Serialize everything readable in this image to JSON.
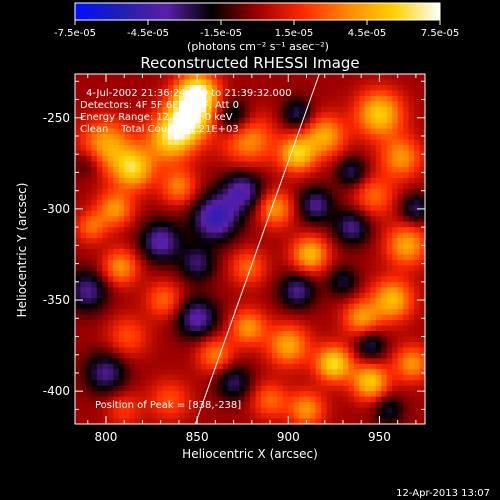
{
  "chart_data": {
    "type": "heatmap",
    "title": "Reconstructed RHESSI Image",
    "xlabel": "Heliocentric X (arcsec)",
    "ylabel": "Heliocentric Y (arcsec)",
    "xlim": [
      783,
      975
    ],
    "ylim": [
      -418,
      -226
    ],
    "x_ticks": [
      800,
      850,
      900,
      950
    ],
    "y_ticks": [
      -250,
      -300,
      -350,
      -400
    ],
    "colorbar": {
      "range": [
        -7.5e-05,
        7.5e-05
      ],
      "tick_labels": [
        "-7.5e-05",
        "-4.5e-05",
        "-1.5e-05",
        "1.5e-05",
        "4.5e-05",
        "7.5e-05"
      ],
      "tick_values": [
        -7.5e-05,
        -4.5e-05,
        -1.5e-05,
        1.5e-05,
        4.5e-05,
        7.5e-05
      ],
      "units_label": "(photons cm⁻² s⁻¹ asec⁻²)",
      "colormap": [
        "#0010ff",
        "#1f1fb0",
        "#5b1fa8",
        "#000000",
        "#9c0000",
        "#ff2a00",
        "#ff8a00",
        "#ffd200",
        "#ffffff"
      ]
    },
    "annotations": {
      "time": "4-Jul-2002 21:36:24.000 to 21:39:32.000",
      "detectors": "Detectors: 4F 5F 6F 7F 8F, Att 0",
      "energy": "Energy Range: 12.0 - 25.0 keV",
      "clean": "Clean    Total Counts: 1.21E+03",
      "peak": "Position of Peak = [838,-238]"
    },
    "limb_line": [
      [
        849,
        -418
      ],
      [
        917,
        -226
      ]
    ],
    "sources": [
      {
        "x": 850,
        "y": -237,
        "v": 7.3e-05,
        "s": 8
      },
      {
        "x": 845,
        "y": -251,
        "v": 6.5e-05,
        "s": 9
      },
      {
        "x": 835,
        "y": -262,
        "v": 5e-05,
        "s": 9
      },
      {
        "x": 815,
        "y": -278,
        "v": 5.5e-05,
        "s": 8
      },
      {
        "x": 800,
        "y": -265,
        "v": 4.5e-05,
        "s": 10
      },
      {
        "x": 840,
        "y": -288,
        "v": 3.5e-05,
        "s": 7
      },
      {
        "x": 805,
        "y": -300,
        "v": 4e-05,
        "s": 7
      },
      {
        "x": 878,
        "y": -262,
        "v": 4e-05,
        "s": 10
      },
      {
        "x": 905,
        "y": -270,
        "v": 5.5e-05,
        "s": 7
      },
      {
        "x": 920,
        "y": -260,
        "v": 4.5e-05,
        "s": 8
      },
      {
        "x": 950,
        "y": -248,
        "v": 5.5e-05,
        "s": 9
      },
      {
        "x": 962,
        "y": -272,
        "v": 4e-05,
        "s": 8
      },
      {
        "x": 947,
        "y": -293,
        "v": 3e-05,
        "s": 8
      },
      {
        "x": 893,
        "y": -300,
        "v": 4e-05,
        "s": 7
      },
      {
        "x": 912,
        "y": -325,
        "v": 5e-05,
        "s": 7
      },
      {
        "x": 878,
        "y": -332,
        "v": 3e-05,
        "s": 7
      },
      {
        "x": 965,
        "y": -320,
        "v": 4.5e-05,
        "s": 8
      },
      {
        "x": 957,
        "y": -350,
        "v": 5e-05,
        "s": 8
      },
      {
        "x": 940,
        "y": -360,
        "v": 4e-05,
        "s": 7
      },
      {
        "x": 925,
        "y": -385,
        "v": 6e-05,
        "s": 7
      },
      {
        "x": 945,
        "y": -395,
        "v": 5.5e-05,
        "s": 7
      },
      {
        "x": 968,
        "y": -385,
        "v": 4e-05,
        "s": 7
      },
      {
        "x": 900,
        "y": -375,
        "v": 4.5e-05,
        "s": 8
      },
      {
        "x": 878,
        "y": -365,
        "v": 4e-05,
        "s": 7
      },
      {
        "x": 860,
        "y": -380,
        "v": 3.5e-05,
        "s": 7
      },
      {
        "x": 812,
        "y": -370,
        "v": 2.5e-05,
        "s": 8
      },
      {
        "x": 832,
        "y": -350,
        "v": 3e-05,
        "s": 7
      },
      {
        "x": 808,
        "y": -332,
        "v": 4e-05,
        "s": 7
      },
      {
        "x": 792,
        "y": -310,
        "v": 3e-05,
        "s": 6
      },
      {
        "x": 835,
        "y": -405,
        "v": 2.5e-05,
        "s": 8
      },
      {
        "x": 810,
        "y": -410,
        "v": 2e-05,
        "s": 7
      },
      {
        "x": 910,
        "y": -410,
        "v": 4e-05,
        "s": 7
      },
      {
        "x": 890,
        "y": -405,
        "v": 3e-05,
        "s": 7
      },
      {
        "x": 870,
        "y": -250,
        "v": -3.5e-05,
        "s": 7
      },
      {
        "x": 905,
        "y": -248,
        "v": -3e-05,
        "s": 6
      },
      {
        "x": 860,
        "y": -305,
        "v": -5e-05,
        "s": 9
      },
      {
        "x": 875,
        "y": -290,
        "v": -4e-05,
        "s": 8
      },
      {
        "x": 830,
        "y": -318,
        "v": -4e-05,
        "s": 8
      },
      {
        "x": 850,
        "y": -330,
        "v": -3e-05,
        "s": 7
      },
      {
        "x": 915,
        "y": -298,
        "v": -3.5e-05,
        "s": 7
      },
      {
        "x": 935,
        "y": -310,
        "v": -3.5e-05,
        "s": 7
      },
      {
        "x": 935,
        "y": -280,
        "v": -3e-05,
        "s": 6
      },
      {
        "x": 790,
        "y": -345,
        "v": -3.5e-05,
        "s": 8
      },
      {
        "x": 800,
        "y": -390,
        "v": -3.5e-05,
        "s": 8
      },
      {
        "x": 850,
        "y": -360,
        "v": -4e-05,
        "s": 8
      },
      {
        "x": 870,
        "y": -395,
        "v": -3e-05,
        "s": 7
      },
      {
        "x": 905,
        "y": -345,
        "v": -3.5e-05,
        "s": 7
      },
      {
        "x": 945,
        "y": -375,
        "v": -3e-05,
        "s": 6
      },
      {
        "x": 970,
        "y": -300,
        "v": -3e-05,
        "s": 6
      },
      {
        "x": 930,
        "y": -340,
        "v": -2.5e-05,
        "s": 6
      },
      {
        "x": 790,
        "y": -275,
        "v": -2e-05,
        "s": 6
      },
      {
        "x": 955,
        "y": -410,
        "v": -2.5e-05,
        "s": 6
      }
    ]
  },
  "footer": {
    "timestamp": "12-Apr-2013 13:07"
  }
}
